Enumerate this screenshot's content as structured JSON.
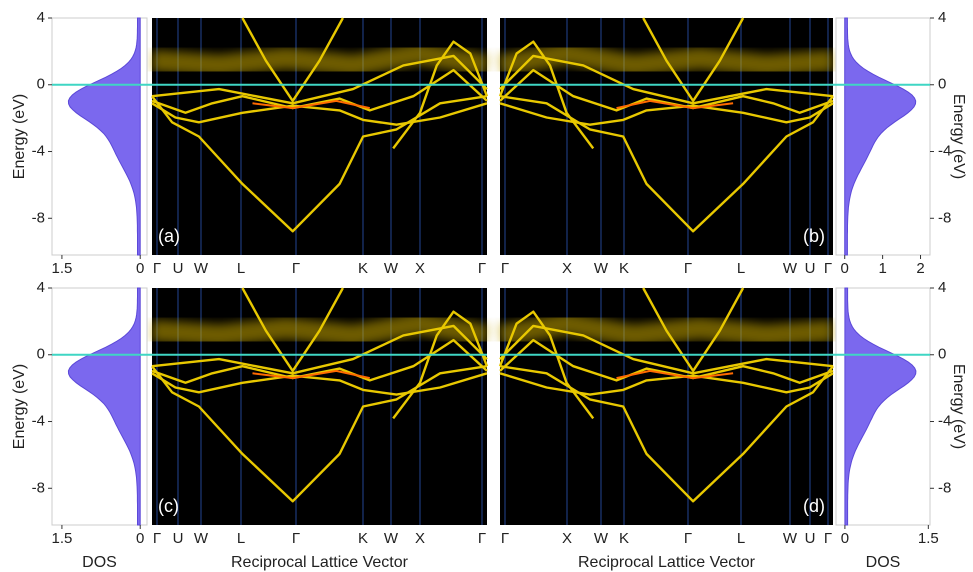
{
  "panels": [
    {
      "label": "(a)",
      "ylabel": "Energy (eV)",
      "ylim": [
        -10.2,
        4
      ],
      "yticks": [
        4,
        0,
        -4,
        -8
      ],
      "kpoints": [
        "Γ",
        "U",
        "W",
        "L",
        "Γ",
        "K",
        "W",
        "X",
        "Γ"
      ],
      "dos_xlim": [
        1.69,
        -0.13
      ],
      "dos_xticks": [
        1.5,
        0
      ]
    },
    {
      "label": "(b)",
      "ylabel": "Energy (eV)",
      "ylim": [
        -10.2,
        4
      ],
      "yticks": [
        4,
        0,
        -4,
        -8
      ],
      "kpoints": [
        "Γ",
        "X",
        "W",
        "K",
        "Γ",
        "L",
        "W",
        "U",
        "Γ"
      ],
      "dos_xlim": [
        -0.23,
        2.25
      ],
      "dos_xticks": [
        0,
        1,
        2
      ]
    },
    {
      "label": "(c)",
      "ylabel": "Energy (eV)",
      "ylim": [
        -10.2,
        4
      ],
      "yticks": [
        4,
        0,
        -4,
        -8
      ],
      "kpoints": [
        "Γ",
        "U",
        "W",
        "L",
        "Γ",
        "K",
        "W",
        "X",
        "Γ"
      ],
      "dos_xlim": [
        1.69,
        -0.13
      ],
      "dos_xticks": [
        1.5,
        0
      ],
      "xlabel": "Reciprocal Lattice Vector",
      "dos_label": "DOS"
    },
    {
      "label": "(d)",
      "ylabel": "Energy (eV)",
      "ylim": [
        -10.2,
        4
      ],
      "yticks": [
        4,
        0,
        -4,
        -8
      ],
      "kpoints": [
        "Γ",
        "X",
        "W",
        "K",
        "Γ",
        "L",
        "W",
        "U",
        "Γ"
      ],
      "dos_xlim": [
        -0.16,
        1.53
      ],
      "dos_xticks": [
        0,
        1.5
      ],
      "xlabel": "Reciprocal Lattice Vector",
      "dos_label": "DOS"
    }
  ]
}
